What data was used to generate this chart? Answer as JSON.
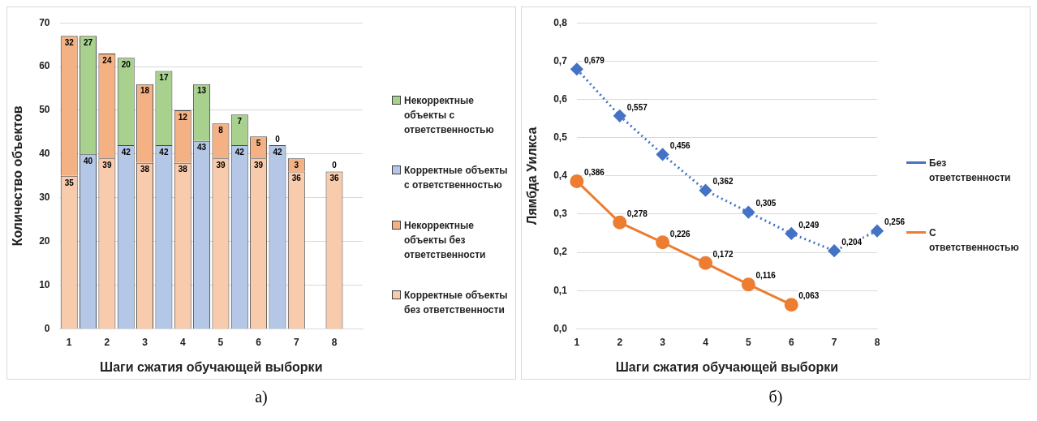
{
  "chart_data": [
    {
      "type": "bar",
      "stacked": true,
      "xlabel": "Шаги сжатия обучающей выборки",
      "ylabel": "Количество объектов",
      "categories": [
        "1",
        null,
        "2",
        null,
        "3",
        null,
        "4",
        null,
        "5",
        null,
        "6",
        null,
        "7",
        null,
        "8",
        null
      ],
      "ylim": [
        0,
        70
      ],
      "yticks": [
        0,
        10,
        20,
        30,
        40,
        50,
        60,
        70
      ],
      "grid": "y",
      "legend": "right",
      "data_labels": true,
      "annotations": [
        "а)"
      ],
      "series": [
        {
          "name": "Корректные объекты без ответственности",
          "color": "#f8cbad",
          "values": [
            35,
            null,
            39,
            null,
            38,
            null,
            38,
            null,
            39,
            null,
            39,
            null,
            36,
            null,
            36,
            null
          ]
        },
        {
          "name": "Некорректные объекты без ответственности",
          "color": "#f4b183",
          "values": [
            32,
            null,
            24,
            null,
            18,
            null,
            12,
            null,
            8,
            null,
            5,
            null,
            3,
            null,
            0,
            null
          ]
        },
        {
          "name": "Корректные объекты с ответственностью",
          "color": "#b4c7e7",
          "values": [
            null,
            40,
            null,
            42,
            null,
            42,
            null,
            43,
            null,
            42,
            null,
            42,
            null,
            null,
            null,
            null
          ]
        },
        {
          "name": "Некорректные объекты с ответственностью",
          "color": "#a9d18e",
          "values": [
            null,
            27,
            null,
            20,
            null,
            17,
            null,
            13,
            null,
            7,
            null,
            0,
            null,
            null,
            null,
            null
          ]
        }
      ]
    },
    {
      "type": "line",
      "xlabel": "Шаги сжатия обучающей выборки",
      "ylabel": "Лямбда Уилкса",
      "categories": [
        "1",
        "2",
        "3",
        "4",
        "5",
        "6",
        "7",
        "8"
      ],
      "ylim": [
        0,
        0.8
      ],
      "yticks": [
        {
          "value": 0,
          "label": "0,0"
        },
        {
          "value": 0.1,
          "label": "0,1"
        },
        {
          "value": 0.2,
          "label": "0,2"
        },
        {
          "value": 0.3,
          "label": "0,3"
        },
        {
          "value": 0.4,
          "label": "0,4"
        },
        {
          "value": 0.5,
          "label": "0,5"
        },
        {
          "value": 0.6,
          "label": "0,6"
        },
        {
          "value": 0.7,
          "label": "0,7"
        },
        {
          "value": 0.8,
          "label": "0,8"
        }
      ],
      "grid": "y",
      "legend": "right",
      "annotations": [
        "б)"
      ],
      "series": [
        {
          "name": "Без ответственности",
          "color": "#4472c4",
          "marker": "diamond",
          "line_style": "dotted",
          "values": [
            0.679,
            0.557,
            0.456,
            0.362,
            0.305,
            0.249,
            0.204,
            0.256
          ],
          "value_labels": [
            "0,679",
            "0,557",
            "0,456",
            "0,362",
            "0,305",
            "0,249",
            "0,204",
            "0,256"
          ]
        },
        {
          "name": "С ответственностью",
          "color": "#ed7d31",
          "marker": "circle",
          "line_style": "solid",
          "values": [
            0.386,
            0.278,
            0.226,
            0.172,
            0.116,
            0.063,
            null,
            null
          ],
          "value_labels": [
            "0,386",
            "0,278",
            "0,226",
            "0,172",
            "0,116",
            "0,063",
            null,
            null
          ]
        }
      ]
    }
  ]
}
